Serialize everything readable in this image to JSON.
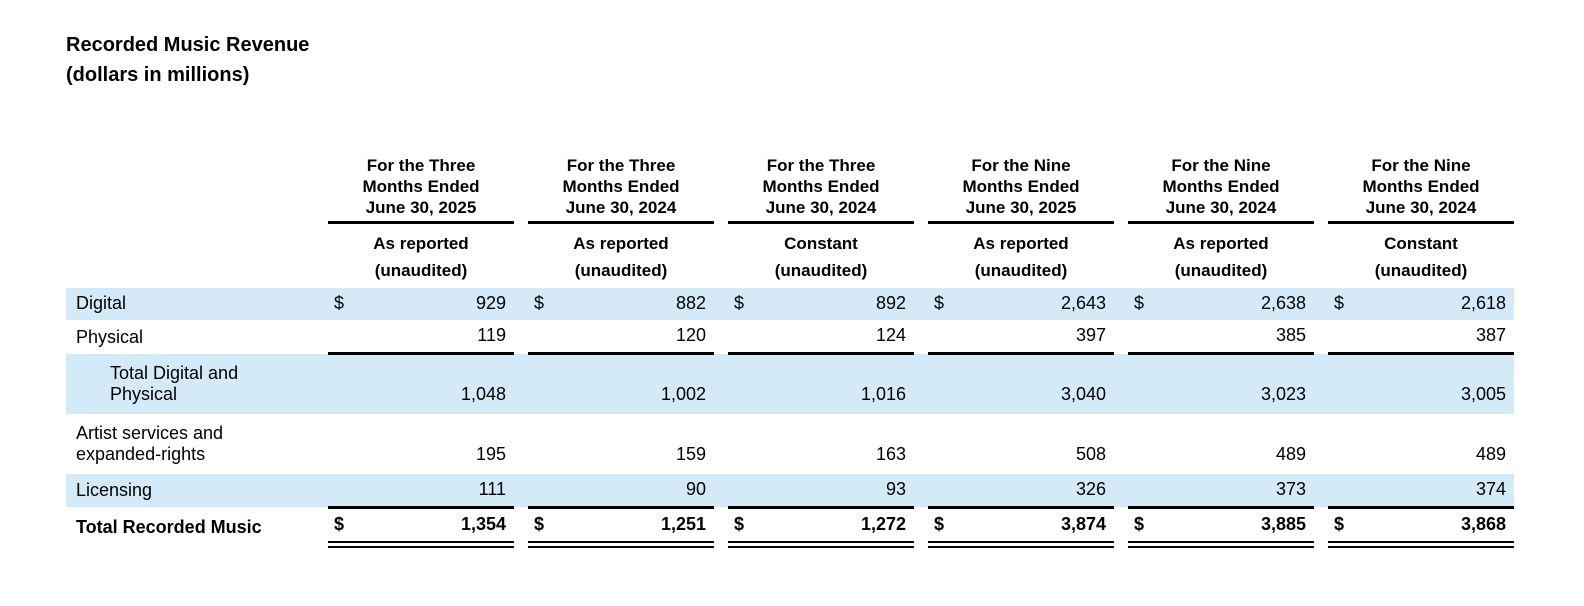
{
  "title": "Recorded Music Revenue",
  "subtitle": "(dollars in millions)",
  "colors": {
    "row_highlight": "#D4EAF8",
    "text": "#000000",
    "rule": "#000000"
  },
  "table": {
    "dollar_sign": "$",
    "columns": [
      {
        "period_lines": [
          "For the Three",
          "Months Ended",
          "June 30, 2025"
        ],
        "basis": "As reported",
        "note": "(unaudited)"
      },
      {
        "period_lines": [
          "For the Three",
          "Months Ended",
          "June 30, 2024"
        ],
        "basis": "As reported",
        "note": "(unaudited)"
      },
      {
        "period_lines": [
          "For the Three",
          "Months Ended",
          "June 30, 2024"
        ],
        "basis": "Constant",
        "note": "(unaudited)"
      },
      {
        "period_lines": [
          "For the Nine",
          "Months Ended",
          "June 30, 2025"
        ],
        "basis": "As reported",
        "note": "(unaudited)"
      },
      {
        "period_lines": [
          "For the Nine",
          "Months Ended",
          "June 30, 2024"
        ],
        "basis": "As reported",
        "note": "(unaudited)"
      },
      {
        "period_lines": [
          "For the Nine",
          "Months Ended",
          "June 30, 2024"
        ],
        "basis": "Constant",
        "note": "(unaudited)"
      }
    ],
    "rows": [
      {
        "label_lines": [
          "Digital"
        ],
        "dollar": true,
        "shaded": true,
        "bold": false,
        "indent": false,
        "rule": "none",
        "values": [
          "929",
          "882",
          "892",
          "2,643",
          "2,638",
          "2,618"
        ]
      },
      {
        "label_lines": [
          "Physical"
        ],
        "dollar": false,
        "shaded": false,
        "bold": false,
        "indent": false,
        "rule": "single",
        "values": [
          "119",
          "120",
          "124",
          "397",
          "385",
          "387"
        ]
      },
      {
        "label_lines": [
          "Total Digital and",
          "Physical"
        ],
        "dollar": false,
        "shaded": true,
        "bold": false,
        "indent": true,
        "rule": "none",
        "values": [
          "1,048",
          "1,002",
          "1,016",
          "3,040",
          "3,023",
          "3,005"
        ]
      },
      {
        "label_lines": [
          "Artist services and",
          "expanded-rights"
        ],
        "dollar": false,
        "shaded": false,
        "bold": false,
        "indent": false,
        "rule": "none",
        "values": [
          "195",
          "159",
          "163",
          "508",
          "489",
          "489"
        ]
      },
      {
        "label_lines": [
          "Licensing"
        ],
        "dollar": false,
        "shaded": true,
        "bold": false,
        "indent": false,
        "rule": "single",
        "values": [
          "111",
          "90",
          "93",
          "326",
          "373",
          "374"
        ]
      },
      {
        "label_lines": [
          "Total Recorded Music"
        ],
        "dollar": true,
        "shaded": false,
        "bold": true,
        "indent": false,
        "rule": "double",
        "values": [
          "1,354",
          "1,251",
          "1,272",
          "3,874",
          "3,885",
          "3,868"
        ]
      }
    ]
  }
}
